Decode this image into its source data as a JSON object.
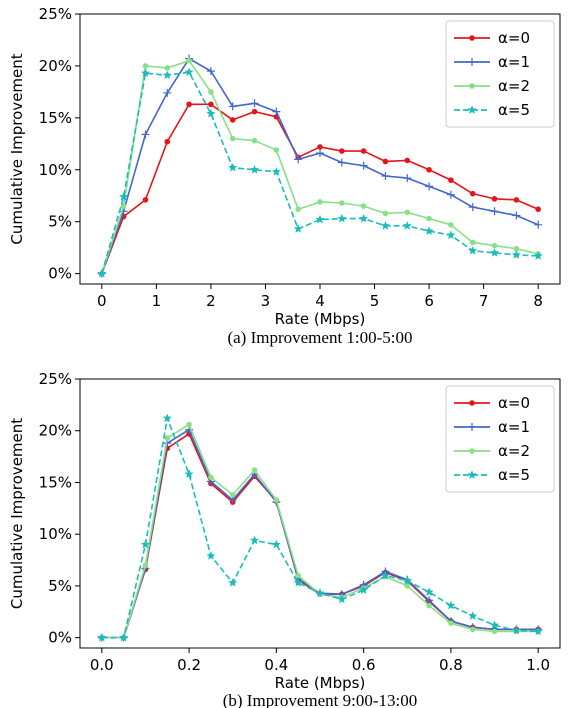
{
  "chart_data": [
    {
      "type": "line",
      "caption": "(a) Improvement 1:00-5:00",
      "xlabel": "Rate (Mbps)",
      "ylabel": "Cumulative Improvement",
      "xlim": [
        -0.4,
        8.4
      ],
      "ylim": [
        -0.01,
        0.25
      ],
      "xticks": [
        0,
        1,
        2,
        3,
        4,
        5,
        6,
        7,
        8
      ],
      "xtick_labels": [
        "0",
        "1",
        "2",
        "3",
        "4",
        "5",
        "6",
        "7",
        "8"
      ],
      "yticks": [
        0,
        0.05,
        0.1,
        0.15,
        0.2,
        0.25
      ],
      "ytick_labels": [
        "0%",
        "5%",
        "10%",
        "15%",
        "20%",
        "25%"
      ],
      "legend_position": "top-right",
      "grid": false,
      "x": [
        0,
        0.4,
        0.8,
        1.2,
        1.6,
        2.0,
        2.4,
        2.8,
        3.2,
        3.6,
        4.0,
        4.4,
        4.8,
        5.2,
        5.6,
        6.0,
        6.4,
        6.8,
        7.2,
        7.6,
        8.0
      ],
      "series": [
        {
          "name": "α=0",
          "color": "#e8141a",
          "dash": "solid",
          "marker": "dot",
          "values": [
            0,
            0.055,
            0.071,
            0.127,
            0.163,
            0.163,
            0.148,
            0.156,
            0.151,
            0.112,
            0.122,
            0.118,
            0.118,
            0.108,
            0.109,
            0.1,
            0.09,
            0.077,
            0.072,
            0.071,
            0.062
          ]
        },
        {
          "name": "α=1",
          "color": "#4466cc",
          "dash": "solid",
          "marker": "plus",
          "values": [
            0,
            0.06,
            0.134,
            0.174,
            0.207,
            0.195,
            0.161,
            0.164,
            0.156,
            0.11,
            0.116,
            0.107,
            0.104,
            0.094,
            0.092,
            0.084,
            0.076,
            0.064,
            0.06,
            0.056,
            0.047
          ]
        },
        {
          "name": "α=2",
          "color": "#88e088",
          "dash": "solid",
          "marker": "dot",
          "values": [
            0,
            0.065,
            0.2,
            0.198,
            0.205,
            0.175,
            0.13,
            0.128,
            0.119,
            0.062,
            0.069,
            0.068,
            0.065,
            0.058,
            0.059,
            0.053,
            0.047,
            0.03,
            0.027,
            0.024,
            0.019
          ]
        },
        {
          "name": "α=5",
          "color": "#1bbcbc",
          "dash": "dashed",
          "marker": "star",
          "values": [
            0,
            0.074,
            0.193,
            0.191,
            0.194,
            0.154,
            0.102,
            0.1,
            0.098,
            0.043,
            0.052,
            0.053,
            0.053,
            0.046,
            0.046,
            0.041,
            0.037,
            0.022,
            0.02,
            0.018,
            0.017
          ]
        }
      ]
    },
    {
      "type": "line",
      "caption": "(b) Improvement 9:00-13:00",
      "xlabel": "Rate (Mbps)",
      "ylabel": "Cumulative Improvement",
      "xlim": [
        -0.05,
        1.05
      ],
      "ylim": [
        -0.01,
        0.25
      ],
      "xticks": [
        0,
        0.2,
        0.4,
        0.6,
        0.8,
        1.0
      ],
      "xtick_labels": [
        "0.0",
        "0.2",
        "0.4",
        "0.6",
        "0.8",
        "1.0"
      ],
      "yticks": [
        0,
        0.05,
        0.1,
        0.15,
        0.2,
        0.25
      ],
      "ytick_labels": [
        "0%",
        "5%",
        "10%",
        "15%",
        "20%",
        "25%"
      ],
      "legend_position": "top-right",
      "grid": false,
      "x": [
        0,
        0.05,
        0.1,
        0.15,
        0.2,
        0.25,
        0.3,
        0.35,
        0.4,
        0.45,
        0.5,
        0.55,
        0.6,
        0.65,
        0.7,
        0.75,
        0.8,
        0.85,
        0.9,
        0.95,
        1.0
      ],
      "series": [
        {
          "name": "α=0",
          "color": "#e8141a",
          "dash": "solid",
          "marker": "dot",
          "values": [
            0,
            0,
            0.066,
            0.183,
            0.197,
            0.149,
            0.131,
            0.156,
            0.132,
            0.056,
            0.042,
            0.042,
            0.05,
            0.063,
            0.055,
            0.035,
            0.016,
            0.01,
            0.008,
            0.008,
            0.008
          ]
        },
        {
          "name": "α=1",
          "color": "#4466cc",
          "dash": "solid",
          "marker": "plus",
          "values": [
            0,
            0,
            0.067,
            0.188,
            0.201,
            0.151,
            0.133,
            0.158,
            0.131,
            0.057,
            0.043,
            0.042,
            0.051,
            0.064,
            0.056,
            0.036,
            0.016,
            0.01,
            0.008,
            0.008,
            0.008
          ]
        },
        {
          "name": "α=2",
          "color": "#88e088",
          "dash": "solid",
          "marker": "dot",
          "values": [
            0,
            0,
            0.07,
            0.193,
            0.206,
            0.155,
            0.138,
            0.162,
            0.133,
            0.06,
            0.042,
            0.039,
            0.048,
            0.059,
            0.05,
            0.031,
            0.014,
            0.008,
            0.006,
            0.006,
            0.006
          ]
        },
        {
          "name": "α=5",
          "color": "#1bbcbc",
          "dash": "dashed",
          "marker": "star",
          "values": [
            0,
            0,
            0.09,
            0.212,
            0.158,
            0.079,
            0.053,
            0.094,
            0.09,
            0.053,
            0.043,
            0.037,
            0.046,
            0.06,
            0.055,
            0.044,
            0.031,
            0.021,
            0.012,
            0.007,
            0.006
          ]
        }
      ]
    }
  ]
}
